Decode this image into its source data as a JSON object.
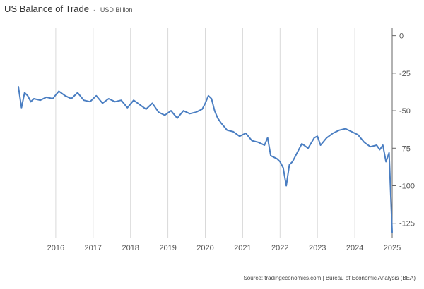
{
  "header": {
    "title": "US Balance of Trade",
    "separator": "-",
    "unit": "USD Billion"
  },
  "footer": {
    "source": "Source: tradingeconomics.com | Bureau of Economic Analysis (BEA)"
  },
  "colors": {
    "line": "#4a7ec2",
    "grid": "#d9d9d9",
    "axis": "#555555"
  },
  "chart_data": {
    "type": "line",
    "title": "US Balance of Trade - USD Billion",
    "xlabel": "",
    "ylabel": "",
    "x_ticks": [
      "2016",
      "2017",
      "2018",
      "2019",
      "2020",
      "2021",
      "2022",
      "2023",
      "2024",
      "2025"
    ],
    "y_ticks": [
      0,
      -25,
      -50,
      -75,
      -100,
      -125
    ],
    "ylim": [
      -135,
      5
    ],
    "xlim": [
      "2015-01",
      "2025-01"
    ],
    "y_axis_position": "right",
    "grid": "vertical",
    "series": [
      {
        "name": "",
        "x": [
          "2015-01",
          "2015-02",
          "2015-03",
          "2015-04",
          "2015-05",
          "2015-06",
          "2015-08",
          "2015-10",
          "2015-12",
          "2016-02",
          "2016-04",
          "2016-06",
          "2016-08",
          "2016-10",
          "2016-12",
          "2017-02",
          "2017-04",
          "2017-06",
          "2017-08",
          "2017-10",
          "2017-12",
          "2018-02",
          "2018-04",
          "2018-06",
          "2018-08",
          "2018-10",
          "2018-12",
          "2019-02",
          "2019-04",
          "2019-06",
          "2019-08",
          "2019-10",
          "2019-12",
          "2020-01",
          "2020-02",
          "2020-03",
          "2020-04",
          "2020-05",
          "2020-06",
          "2020-08",
          "2020-10",
          "2020-12",
          "2021-02",
          "2021-04",
          "2021-06",
          "2021-08",
          "2021-09",
          "2021-10",
          "2021-12",
          "2022-01",
          "2022-02",
          "2022-03",
          "2022-04",
          "2022-05",
          "2022-06",
          "2022-08",
          "2022-10",
          "2022-12",
          "2023-01",
          "2023-02",
          "2023-04",
          "2023-06",
          "2023-08",
          "2023-10",
          "2023-12",
          "2024-02",
          "2024-04",
          "2024-06",
          "2024-08",
          "2024-09",
          "2024-10",
          "2024-11",
          "2024-12",
          "2025-01"
        ],
        "values": [
          -34,
          -48,
          -38,
          -40,
          -44,
          -42,
          -43,
          -41,
          -42,
          -37,
          -40,
          -42,
          -38,
          -43,
          -44,
          -40,
          -45,
          -42,
          -44,
          -43,
          -48,
          -43,
          -46,
          -49,
          -45,
          -51,
          -53,
          -50,
          -55,
          -50,
          -52,
          -51,
          -49,
          -45,
          -40,
          -42,
          -50,
          -55,
          -58,
          -63,
          -64,
          -67,
          -65,
          -70,
          -71,
          -73,
          -68,
          -80,
          -82,
          -84,
          -88,
          -100,
          -86,
          -84,
          -80,
          -72,
          -75,
          -68,
          -67,
          -73,
          -68,
          -65,
          -63,
          -62,
          -64,
          -66,
          -71,
          -74,
          -73,
          -76,
          -73,
          -84,
          -78,
          -131
        ]
      }
    ]
  }
}
